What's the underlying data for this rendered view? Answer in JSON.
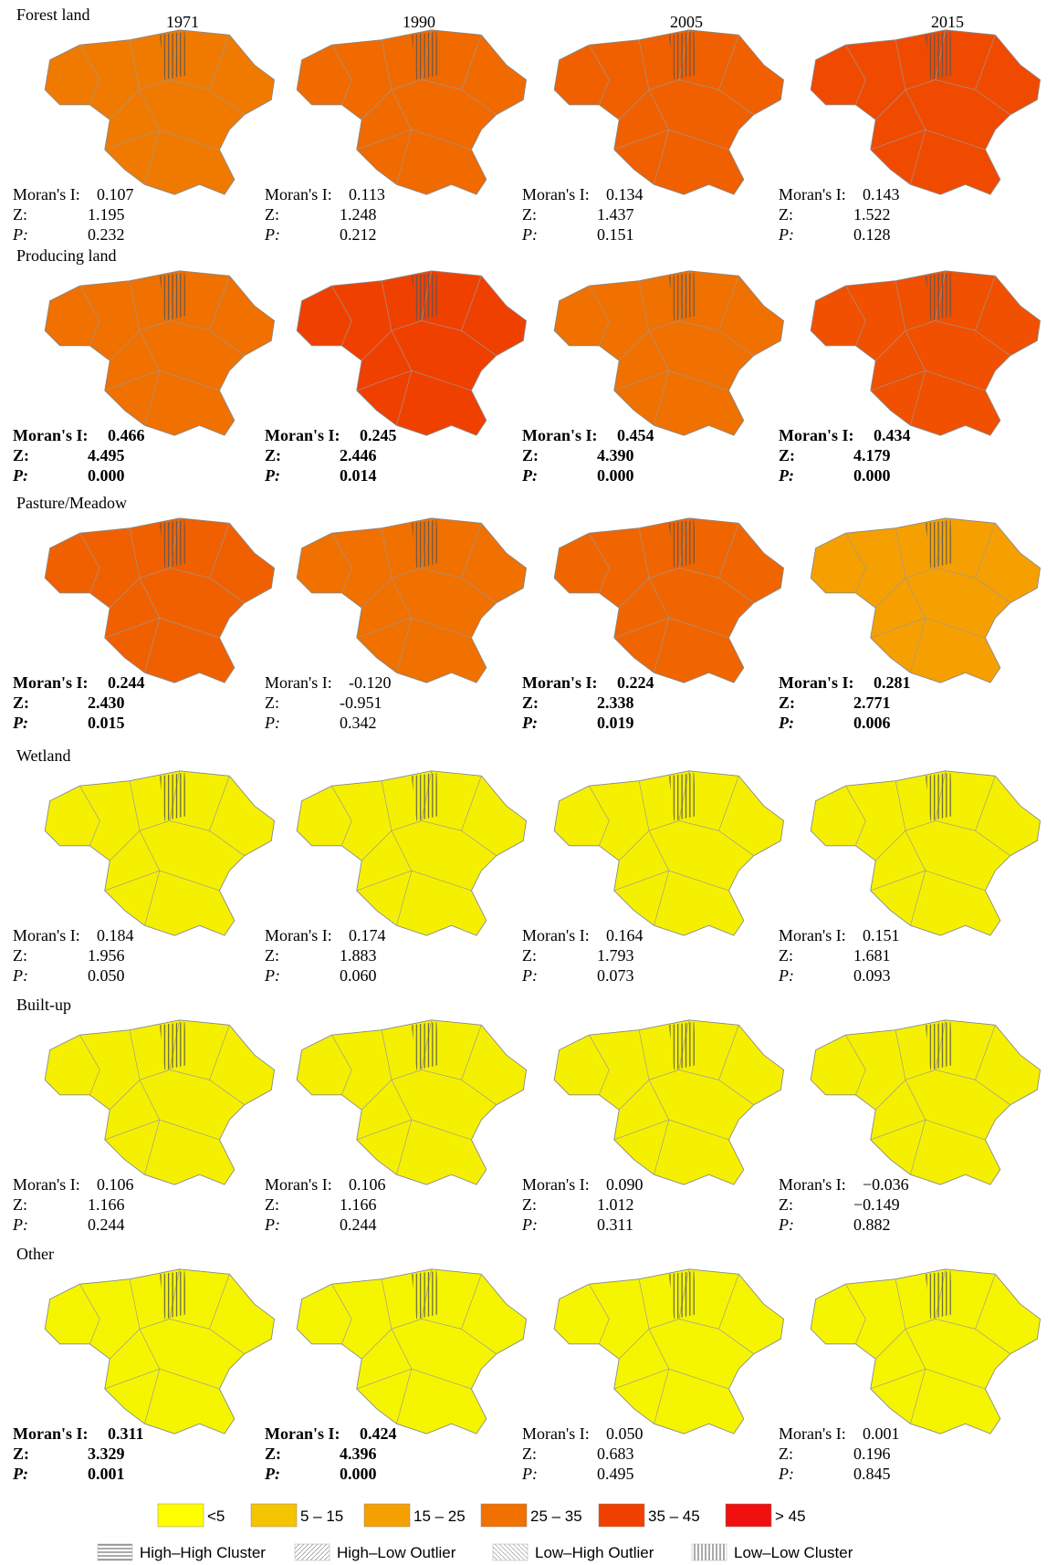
{
  "years": [
    "1971",
    "1990",
    "2005",
    "2015"
  ],
  "stat_labels": {
    "moran": "Moran's I:",
    "z": "Z:",
    "p": "P:"
  },
  "rows": [
    {
      "label": "Forest land",
      "panels": [
        {
          "moran": "0.107",
          "z": "1.195",
          "p": "0.232",
          "bold": false,
          "fill": "#f07a00"
        },
        {
          "moran": "0.113",
          "z": "1.248",
          "p": "0.212",
          "bold": false,
          "fill": "#f06a00"
        },
        {
          "moran": "0.134",
          "z": "1.437",
          "p": "0.151",
          "bold": false,
          "fill": "#f06000"
        },
        {
          "moran": "0.143",
          "z": "1.522",
          "p": "0.128",
          "bold": false,
          "fill": "#f04a00"
        }
      ]
    },
    {
      "label": "Producing land",
      "panels": [
        {
          "moran": "0.466",
          "z": "4.495",
          "p": "0.000",
          "bold": true,
          "fill": "#f07000"
        },
        {
          "moran": "0.245",
          "z": "2.446",
          "p": "0.014",
          "bold": true,
          "fill": "#f04000"
        },
        {
          "moran": "0.454",
          "z": "4.390",
          "p": "0.000",
          "bold": true,
          "fill": "#f07000"
        },
        {
          "moran": "0.434",
          "z": "4.179",
          "p": "0.000",
          "bold": true,
          "fill": "#f05000"
        }
      ]
    },
    {
      "label": "Pasture/Meadow",
      "panels": [
        {
          "moran": "0.244",
          "z": "2.430",
          "p": "0.015",
          "bold": true,
          "fill": "#f06000"
        },
        {
          "moran": "-0.120",
          "z": "-0.951",
          "p": "0.342",
          "bold": false,
          "fill": "#f07000"
        },
        {
          "moran": "0.224",
          "z": "2.338",
          "p": "0.019",
          "bold": true,
          "fill": "#f06500"
        },
        {
          "moran": "0.281",
          "z": "2.771",
          "p": "0.006",
          "bold": true,
          "fill": "#f5a000"
        }
      ]
    },
    {
      "label": "Wetland",
      "panels": [
        {
          "moran": "0.184",
          "z": "1.956",
          "p": "0.050",
          "bold": false,
          "fill": "#f5f000"
        },
        {
          "moran": "0.174",
          "z": "1.883",
          "p": "0.060",
          "bold": false,
          "fill": "#f5f000"
        },
        {
          "moran": "0.164",
          "z": "1.793",
          "p": "0.073",
          "bold": false,
          "fill": "#f5f000"
        },
        {
          "moran": "0.151",
          "z": "1.681",
          "p": "0.093",
          "bold": false,
          "fill": "#f5f000"
        }
      ]
    },
    {
      "label": "Built-up",
      "panels": [
        {
          "moran": "0.106",
          "z": "1.166",
          "p": "0.244",
          "bold": false,
          "fill": "#f5f000"
        },
        {
          "moran": "0.106",
          "z": "1.166",
          "p": "0.244",
          "bold": false,
          "fill": "#f5f000"
        },
        {
          "moran": "0.090",
          "z": "1.012",
          "p": "0.311",
          "bold": false,
          "fill": "#f5f000"
        },
        {
          "moran": "−0.036",
          "z": "−0.149",
          "p": "0.882",
          "bold": false,
          "fill": "#f5f000"
        }
      ]
    },
    {
      "label": "Other",
      "panels": [
        {
          "moran": "0.311",
          "z": "3.329",
          "p": "0.001",
          "bold": true,
          "fill": "#f5f500"
        },
        {
          "moran": "0.424",
          "z": "4.396",
          "p": "0.000",
          "bold": true,
          "fill": "#f5f500"
        },
        {
          "moran": "0.050",
          "z": "0.683",
          "p": "0.495",
          "bold": false,
          "fill": "#f5f500"
        },
        {
          "moran": "0.001",
          "z": "0.196",
          "p": "0.845",
          "bold": false,
          "fill": "#f5f500"
        }
      ]
    }
  ],
  "legend_classes": [
    {
      "label": "<5",
      "color": "#ffff00"
    },
    {
      "label": "5 – 15",
      "color": "#f5c400"
    },
    {
      "label": "15 – 25",
      "color": "#f5a000"
    },
    {
      "label": "25 – 35",
      "color": "#f07000"
    },
    {
      "label": "35 – 45",
      "color": "#f04000"
    },
    {
      "label": "> 45",
      "color": "#f01010"
    }
  ],
  "legend_patterns": [
    "High–High Cluster",
    "High–Low Outlier",
    "Low–High Outlier",
    "Low–Low Cluster"
  ]
}
